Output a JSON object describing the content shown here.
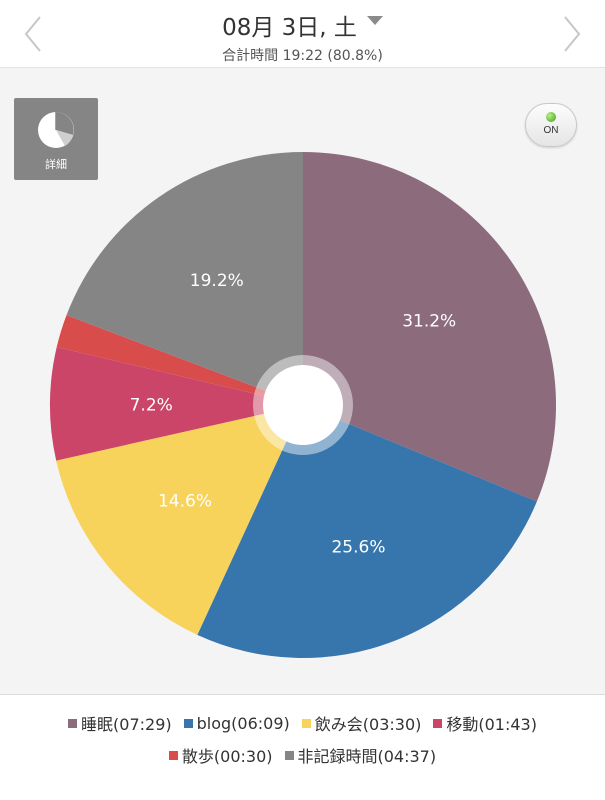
{
  "header": {
    "date": "08月 3日, 土",
    "total": "合計時間 19:22 (80.8%)"
  },
  "detail_button": {
    "label": "詳細",
    "icon": "pie-chart-icon"
  },
  "toggle": {
    "label": "ON",
    "indicator_color": "#4caf1f"
  },
  "chart_data": {
    "type": "pie",
    "start_angle_deg": 0,
    "direction": "clockwise",
    "slices": [
      {
        "name": "睡眠",
        "duration": "07:29",
        "percent": 31.2,
        "label": "31.2%",
        "color": "#8b6b7c"
      },
      {
        "name": "blog",
        "duration": "06:09",
        "percent": 25.6,
        "label": "25.6%",
        "color": "#3676ad"
      },
      {
        "name": "飲み会",
        "duration": "03:30",
        "percent": 14.6,
        "label": "14.6%",
        "color": "#f7d35c"
      },
      {
        "name": "移動",
        "duration": "01:43",
        "percent": 7.2,
        "label": "7.2%",
        "color": "#ca4568"
      },
      {
        "name": "散歩",
        "duration": "00:30",
        "percent": 2.1,
        "label": "",
        "color": "#d94c4c"
      },
      {
        "name": "非記録時間",
        "duration": "04:37",
        "percent": 19.2,
        "label": "19.2%",
        "color": "#858585"
      }
    ]
  },
  "legend": {
    "row1": [
      {
        "text": "睡眠(07:29)",
        "color": "#8b6b7c"
      },
      {
        "text": "blog(06:09)",
        "color": "#3676ad"
      },
      {
        "text": "飲み会(03:30)",
        "color": "#f7d35c"
      },
      {
        "text": "移動(01:43)",
        "color": "#ca4568"
      }
    ],
    "row2": [
      {
        "text": "散歩(00:30)",
        "color": "#d94c4c"
      },
      {
        "text": "非記録時間(04:37)",
        "color": "#858585"
      }
    ]
  }
}
